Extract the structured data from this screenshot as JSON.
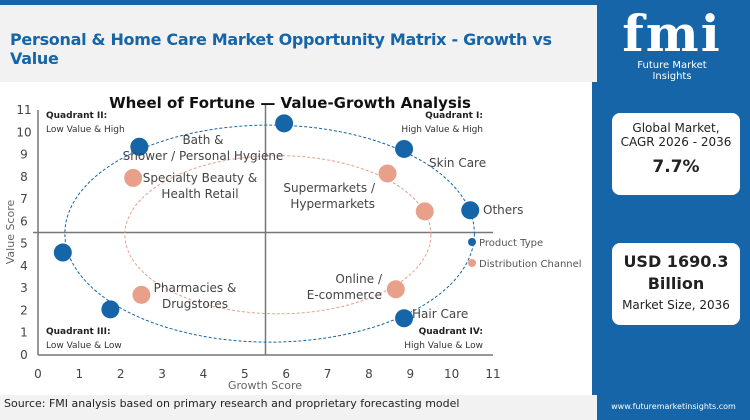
{
  "header": {
    "title": "Personal & Home Care Market Opportunity Matrix - Growth vs Value"
  },
  "footer": {
    "source": "Source: FMI analysis based on primary research and proprietary forecasting model"
  },
  "sidebar": {
    "logo_text": "fmi",
    "logo_sub": "Future Market Insights",
    "cagr_label": "Global Market,",
    "cagr_period": "CAGR 2026 - 2036",
    "cagr_value": "7.7%",
    "size_value_line1": "USD 1690.3",
    "size_value_line2": "Billion",
    "size_label": "Market Size, 2036",
    "url": "www.futuremarketinsights.com",
    "brand_color": "#1565a8"
  },
  "chart_data": {
    "type": "scatter",
    "title": "Wheel of Fortune — Value-Growth  Analysis",
    "xlabel": "Growth Score",
    "ylabel": "Value Score",
    "xlim": [
      0,
      11
    ],
    "ylim": [
      0,
      11
    ],
    "xticks": [
      "0",
      "1",
      "2",
      "3",
      "4",
      "5",
      "6",
      "7",
      "8",
      "9",
      "10",
      "11"
    ],
    "yticks": [
      "0",
      "1",
      "2",
      "3",
      "4",
      "5",
      "6",
      "7",
      "8",
      "9",
      "10",
      "11"
    ],
    "dividers": {
      "x": 5.5,
      "y": 5.5
    },
    "quadrants": [
      {
        "title": "Quadrant I:",
        "subtitle": "High Value & High"
      },
      {
        "title": "Quadrant II:",
        "subtitle": "Low Value & High"
      },
      {
        "title": "Quadrant III:",
        "subtitle": "Low Value & Low"
      },
      {
        "title": "Quadrant IV:",
        "subtitle": "High Value & Low"
      }
    ],
    "legend": {
      "placement": "right"
    },
    "series": [
      {
        "name": "Product Type",
        "color": "#1565a8",
        "points": [
          {
            "x": 5.95,
            "y": 10.4,
            "label": ""
          },
          {
            "x": 2.45,
            "y": 9.35,
            "label": "Bath & Shower / Personal Hygiene"
          },
          {
            "x": 8.85,
            "y": 9.25,
            "label": "Skin Care"
          },
          {
            "x": 10.45,
            "y": 6.5,
            "label": "Others"
          },
          {
            "x": 8.85,
            "y": 1.65,
            "label": "Hair Care"
          },
          {
            "x": 1.75,
            "y": 2.05,
            "label": ""
          },
          {
            "x": 0.6,
            "y": 4.6,
            "label": ""
          }
        ]
      },
      {
        "name": "Distribution Channel",
        "color": "#e9a08a",
        "points": [
          {
            "x": 2.3,
            "y": 7.95,
            "label": "Specialty Beauty & Health Retail"
          },
          {
            "x": 8.45,
            "y": 8.15,
            "label": "Supermarkets / Hypermarkets"
          },
          {
            "x": 9.35,
            "y": 6.45,
            "label": ""
          },
          {
            "x": 8.65,
            "y": 2.95,
            "label": "Online / E-commerce"
          },
          {
            "x": 2.5,
            "y": 2.7,
            "label": "Pharmacies & Drugstores"
          }
        ]
      }
    ]
  }
}
